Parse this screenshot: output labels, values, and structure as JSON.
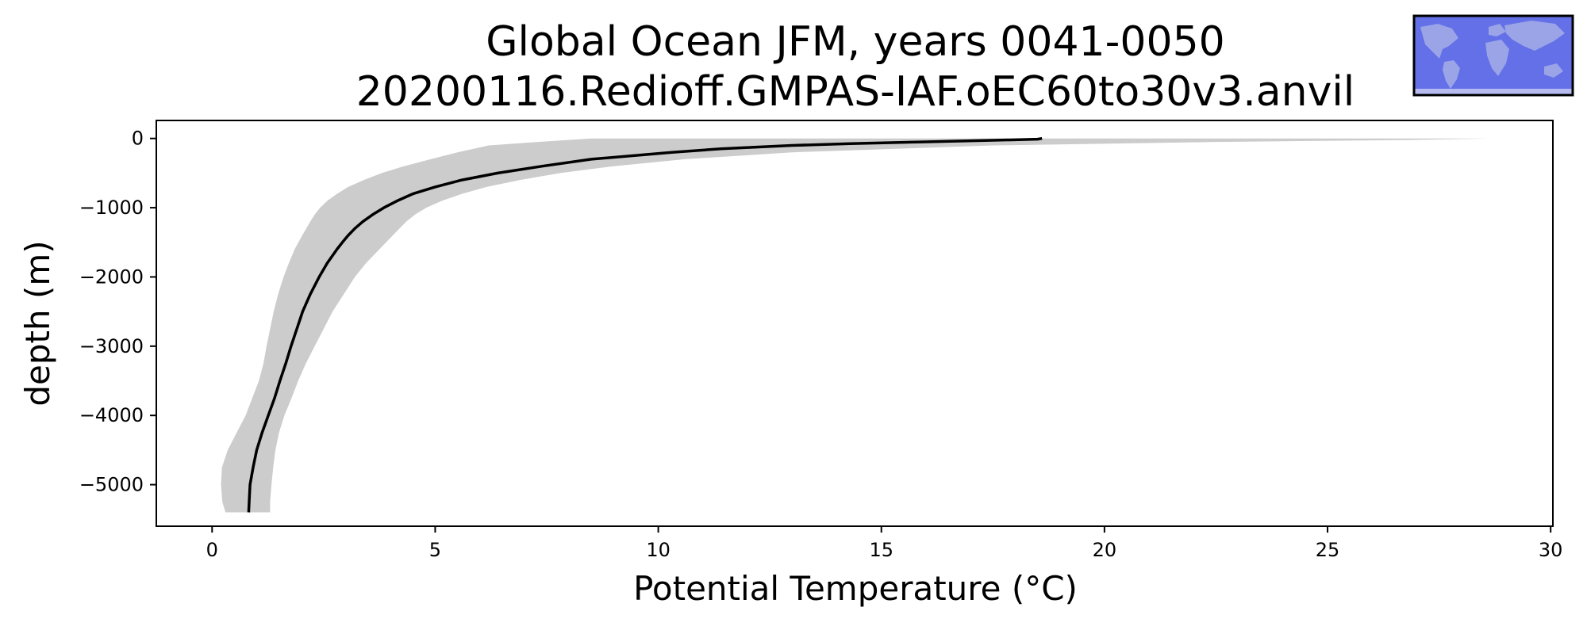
{
  "chart_data": {
    "type": "line",
    "title_line1": "Global Ocean JFM, years 0041-0050",
    "title_line2": "20200116.Redioff.GMPAS-IAF.oEC60to30v3.anvil",
    "xlabel": "Potential Temperature (°C)",
    "ylabel": "depth (m)",
    "xlim": [
      -1.25,
      30.05
    ],
    "ylim": [
      -5600,
      260
    ],
    "xticks": [
      0,
      5,
      10,
      15,
      20,
      25,
      30
    ],
    "yticks": [
      0,
      -1000,
      -2000,
      -3000,
      -4000,
      -5000
    ],
    "grid": false,
    "colors": {
      "mean_line": "#000000",
      "spread": "#cccccc",
      "inset_ocean": "#6470e8",
      "inset_land": "#9aa4e6"
    },
    "inset_map": "global-ocean-region-map",
    "series": [
      {
        "role": "mean",
        "depth": [
          0,
          -10,
          -25,
          -50,
          -75,
          -100,
          -150,
          -200,
          -300,
          -400,
          -500,
          -600,
          -700,
          -800,
          -900,
          -1000,
          -1100,
          -1200,
          -1300,
          -1400,
          -1500,
          -1600,
          -1800,
          -2000,
          -2250,
          -2500,
          -2750,
          -3000,
          -3250,
          -3500,
          -3750,
          -4000,
          -4250,
          -4500,
          -4750,
          -5000,
          -5250,
          -5400
        ],
        "temperature": [
          18.6,
          18.5,
          17.6,
          15.9,
          14.3,
          13.0,
          11.4,
          10.3,
          8.5,
          7.4,
          6.4,
          5.6,
          5.0,
          4.5,
          4.15,
          3.85,
          3.6,
          3.38,
          3.2,
          3.05,
          2.92,
          2.8,
          2.58,
          2.4,
          2.2,
          2.03,
          1.9,
          1.77,
          1.65,
          1.52,
          1.4,
          1.26,
          1.12,
          1.0,
          0.92,
          0.85,
          0.83,
          0.82
        ]
      },
      {
        "role": "spread_low",
        "depth": [
          0,
          -50,
          -100,
          -200,
          -300,
          -400,
          -500,
          -600,
          -700,
          -800,
          -900,
          -1000,
          -1100,
          -1200,
          -1400,
          -1600,
          -1800,
          -2000,
          -2250,
          -2500,
          -2750,
          -3000,
          -3250,
          -3500,
          -3750,
          -4000,
          -4250,
          -4500,
          -4750,
          -5000,
          -5250,
          -5400
        ],
        "temperature": [
          8.5,
          7.3,
          6.2,
          5.5,
          4.9,
          4.3,
          3.8,
          3.4,
          3.05,
          2.8,
          2.58,
          2.42,
          2.3,
          2.2,
          2.02,
          1.85,
          1.72,
          1.6,
          1.48,
          1.38,
          1.3,
          1.22,
          1.15,
          1.05,
          0.9,
          0.75,
          0.55,
          0.35,
          0.22,
          0.2,
          0.23,
          0.3
        ]
      },
      {
        "role": "spread_high",
        "depth": [
          0,
          -20,
          -50,
          -100,
          -200,
          -300,
          -400,
          -500,
          -600,
          -700,
          -800,
          -900,
          -1000,
          -1100,
          -1200,
          -1300,
          -1400,
          -1500,
          -1600,
          -1800,
          -2000,
          -2250,
          -2500,
          -2750,
          -3000,
          -3250,
          -3500,
          -3750,
          -4000,
          -4250,
          -4500,
          -4750,
          -5000,
          -5250,
          -5400
        ],
        "temperature": [
          28.6,
          27.0,
          22.5,
          17.5,
          13.0,
          10.6,
          9.0,
          7.8,
          6.9,
          6.15,
          5.6,
          5.15,
          4.8,
          4.55,
          4.35,
          4.2,
          4.05,
          3.9,
          3.75,
          3.45,
          3.2,
          2.95,
          2.7,
          2.5,
          2.3,
          2.1,
          1.93,
          1.78,
          1.62,
          1.5,
          1.42,
          1.37,
          1.33,
          1.3,
          1.3
        ]
      }
    ]
  }
}
